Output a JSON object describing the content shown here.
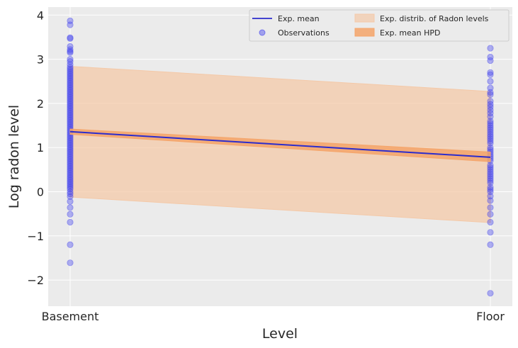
{
  "chart_data": {
    "type": "scatter",
    "title": "",
    "xlabel": "Level",
    "ylabel": "Log radon level",
    "categories": [
      "Basement",
      "Floor"
    ],
    "ylim": [
      -2.6,
      4.2
    ],
    "yticks": [
      -2,
      -1,
      0,
      1,
      2,
      3,
      4
    ],
    "ytick_labels": [
      "−2",
      "−1",
      "0",
      "1",
      "2",
      "3",
      "4"
    ],
    "grid": true,
    "legend_position": "top-right",
    "legend": {
      "mean_line": "Exp. mean",
      "observations": "Observations",
      "distribution_band": "Exp. distrib. of Radon levels",
      "hpd_band": "Exp. mean HPD"
    },
    "colors": {
      "mean_line": "#2c2ccc",
      "observations": "#4444ee",
      "distribution_band": "#f4c9a8",
      "hpd_band": "#f5a56a",
      "plot_background": "#ebebeb",
      "grid": "#ffffff"
    },
    "series": [
      {
        "name": "Exp. mean",
        "kind": "line",
        "x": [
          "Basement",
          "Floor"
        ],
        "y": [
          1.36,
          0.78
        ]
      },
      {
        "name": "Exp. mean HPD",
        "kind": "band",
        "x": [
          "Basement",
          "Floor"
        ],
        "lower": [
          1.3,
          0.68
        ],
        "upper": [
          1.42,
          0.9
        ]
      },
      {
        "name": "Exp. distrib. of Radon levels",
        "kind": "band",
        "x": [
          "Basement",
          "Floor"
        ],
        "lower": [
          -0.12,
          -0.7
        ],
        "upper": [
          2.84,
          2.27
        ]
      },
      {
        "name": "Observations",
        "kind": "scatter",
        "points": {
          "Basement": [
            3.87,
            3.78,
            3.49,
            3.47,
            3.29,
            3.22,
            3.18,
            3.15,
            3.0,
            2.95,
            2.88,
            2.82,
            2.78,
            2.74,
            2.7,
            2.66,
            2.62,
            2.58,
            2.54,
            2.5,
            2.46,
            2.42,
            2.38,
            2.34,
            2.3,
            2.26,
            2.22,
            2.18,
            2.14,
            2.1,
            2.06,
            2.02,
            1.98,
            1.94,
            1.9,
            1.86,
            1.82,
            1.78,
            1.74,
            1.7,
            1.66,
            1.62,
            1.58,
            1.54,
            1.5,
            1.46,
            1.42,
            1.38,
            1.34,
            1.3,
            1.26,
            1.22,
            1.18,
            1.14,
            1.1,
            1.06,
            1.02,
            0.98,
            0.94,
            0.9,
            0.86,
            0.82,
            0.78,
            0.74,
            0.7,
            0.66,
            0.62,
            0.58,
            0.54,
            0.5,
            0.46,
            0.42,
            0.38,
            0.34,
            0.3,
            0.26,
            0.22,
            0.18,
            0.14,
            0.1,
            0.06,
            0.0,
            -0.05,
            -0.11,
            -0.22,
            -0.36,
            -0.51,
            -0.69,
            -1.2,
            -1.61
          ],
          "Floor": [
            3.25,
            3.05,
            2.97,
            2.7,
            2.65,
            2.5,
            2.35,
            2.25,
            2.2,
            2.05,
            1.98,
            1.92,
            1.85,
            1.78,
            1.7,
            1.6,
            1.55,
            1.5,
            1.45,
            1.4,
            1.35,
            1.3,
            1.25,
            1.2,
            1.15,
            1.1,
            1.0,
            0.95,
            0.9,
            0.85,
            0.8,
            0.75,
            0.7,
            0.6,
            0.55,
            0.5,
            0.45,
            0.4,
            0.35,
            0.3,
            0.25,
            0.2,
            0.1,
            0.05,
            0.0,
            -0.1,
            -0.2,
            -0.36,
            -0.51,
            -0.69,
            -0.92,
            -1.2,
            -2.3
          ]
        }
      }
    ]
  }
}
